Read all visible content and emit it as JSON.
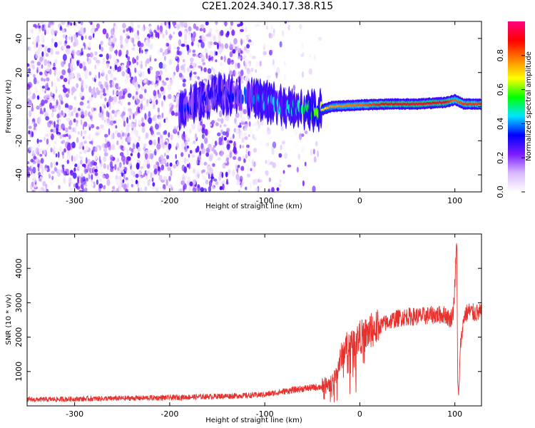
{
  "title": "C2E1.2024.340.17.38.R15",
  "chart_data": [
    {
      "type": "heatmap",
      "xlabel": "Height of straight line (km)",
      "ylabel": "Frequency (Hz)",
      "xlim": [
        -350,
        128
      ],
      "ylim": [
        -50,
        50
      ],
      "xticks": [
        -300,
        -200,
        -100,
        0,
        100
      ],
      "yticks": [
        -40,
        -20,
        0,
        20,
        40
      ],
      "colorbar": {
        "label": "Normalized spectral amplitude",
        "range": [
          0.0,
          1.0
        ],
        "ticks": [
          0.0,
          0.2,
          0.4,
          0.6,
          0.8
        ],
        "colors": [
          "#ffffff",
          "#d8b8ff",
          "#7a1bff",
          "#0000ff",
          "#00e5ff",
          "#00ff00",
          "#ffff00",
          "#ff8000",
          "#ff0000",
          "#ff0080"
        ]
      },
      "ridge": [
        {
          "x": -190,
          "y": -3,
          "amp": 0.35
        },
        {
          "x": -150,
          "y": 8,
          "amp": 0.3
        },
        {
          "x": -110,
          "y": 6,
          "amp": 0.4
        },
        {
          "x": -100,
          "y": 3,
          "amp": 0.45
        },
        {
          "x": -80,
          "y": 0,
          "amp": 0.45
        },
        {
          "x": -60,
          "y": -1,
          "amp": 0.5
        },
        {
          "x": -45,
          "y": -3,
          "amp": 0.6
        },
        {
          "x": -30,
          "y": 0,
          "amp": 0.75
        },
        {
          "x": 0,
          "y": 1,
          "amp": 0.8
        },
        {
          "x": 30,
          "y": 1.5,
          "amp": 0.9
        },
        {
          "x": 60,
          "y": 1.5,
          "amp": 0.92
        },
        {
          "x": 90,
          "y": 2.5,
          "amp": 0.9
        },
        {
          "x": 100,
          "y": 4,
          "amp": 0.8
        },
        {
          "x": 110,
          "y": 1.5,
          "amp": 0.85
        },
        {
          "x": 128,
          "y": 1.5,
          "amp": 0.85
        }
      ]
    },
    {
      "type": "line",
      "xlabel": "Height of straight line (km)",
      "ylabel": "SNR (10 * v/v)",
      "xlim": [
        -350,
        128
      ],
      "ylim": [
        0,
        5000
      ],
      "xticks": [
        -300,
        -200,
        -100,
        0,
        100
      ],
      "yticks": [
        1000,
        2000,
        3000,
        4000
      ],
      "color": "#e8302c",
      "series": [
        {
          "x": [
            -350,
            -300,
            -250,
            -200,
            -150,
            -120,
            -100,
            -80,
            -60,
            -40,
            -30,
            -25,
            -20,
            -15,
            -10,
            -5,
            0,
            5,
            10,
            20,
            30,
            40,
            50,
            60,
            70,
            80,
            90,
            95,
            98,
            100,
            102,
            103,
            104,
            106,
            110,
            115,
            120,
            128
          ],
          "y": [
            180,
            200,
            220,
            240,
            280,
            300,
            330,
            420,
            500,
            560,
            650,
            900,
            1400,
            1700,
            1800,
            1900,
            2000,
            2050,
            2150,
            2300,
            2450,
            2550,
            2600,
            2600,
            2620,
            2650,
            2650,
            2500,
            2700,
            3500,
            4800,
            600,
            300,
            1800,
            2650,
            2750,
            2700,
            2700
          ]
        }
      ]
    }
  ]
}
